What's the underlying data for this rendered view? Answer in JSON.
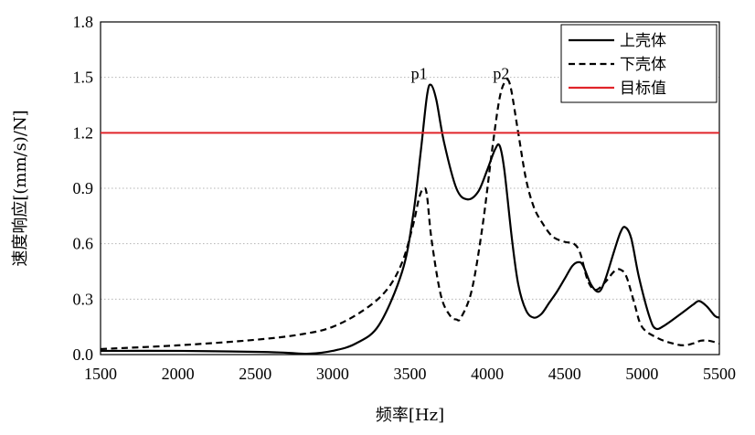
{
  "chart_data": {
    "type": "line",
    "title": "",
    "xlabel": "频率[Hz]",
    "ylabel": "速度响应[(mm/s)/N]",
    "xlim": [
      1500,
      5500
    ],
    "ylim": [
      0,
      1.8
    ],
    "x_ticks": [
      "1500",
      "2000",
      "2500",
      "3000",
      "3500",
      "4000",
      "4500",
      "5000",
      "5500"
    ],
    "y_ticks": [
      "0.0",
      "0.3",
      "0.6",
      "0.9",
      "1.2",
      "1.5",
      "1.8"
    ],
    "grid": true,
    "legend_position": "top-right",
    "series": [
      {
        "name": "上壳体",
        "style": "solid",
        "color": "#000000",
        "x": [
          1500,
          2000,
          2500,
          2700,
          2850,
          3000,
          3150,
          3300,
          3450,
          3520,
          3570,
          3610,
          3635,
          3670,
          3720,
          3800,
          3870,
          3940,
          4000,
          4050,
          4080,
          4110,
          4160,
          4200,
          4250,
          4300,
          4350,
          4400,
          4450,
          4500,
          4550,
          4590,
          4620,
          4670,
          4720,
          4760,
          4820,
          4860,
          4890,
          4930,
          4980,
          5050,
          5090,
          5150,
          5250,
          5330,
          5370,
          5420,
          5470,
          5500
        ],
        "values": [
          0.02,
          0.02,
          0.015,
          0.01,
          0.005,
          0.02,
          0.06,
          0.16,
          0.45,
          0.75,
          1.1,
          1.4,
          1.46,
          1.38,
          1.15,
          0.9,
          0.84,
          0.88,
          1.0,
          1.11,
          1.13,
          1.0,
          0.62,
          0.38,
          0.24,
          0.2,
          0.22,
          0.28,
          0.34,
          0.41,
          0.48,
          0.5,
          0.48,
          0.38,
          0.34,
          0.4,
          0.56,
          0.66,
          0.69,
          0.63,
          0.42,
          0.2,
          0.14,
          0.16,
          0.22,
          0.27,
          0.29,
          0.26,
          0.21,
          0.2
        ]
      },
      {
        "name": "下壳体",
        "style": "dashed",
        "color": "#000000",
        "x": [
          1500,
          2000,
          2500,
          2800,
          3000,
          3200,
          3350,
          3450,
          3520,
          3560,
          3590,
          3610,
          3640,
          3700,
          3760,
          3800,
          3830,
          3900,
          3970,
          4030,
          4080,
          4120,
          4150,
          4200,
          4250,
          4300,
          4350,
          4420,
          4500,
          4560,
          4600,
          4650,
          4700,
          4760,
          4820,
          4860,
          4900,
          4950,
          5000,
          5100,
          5200,
          5270,
          5330,
          5380,
          5430,
          5480,
          5500
        ],
        "values": [
          0.03,
          0.05,
          0.08,
          0.11,
          0.15,
          0.24,
          0.35,
          0.5,
          0.7,
          0.85,
          0.9,
          0.86,
          0.62,
          0.32,
          0.21,
          0.19,
          0.2,
          0.35,
          0.7,
          1.1,
          1.39,
          1.48,
          1.45,
          1.2,
          0.95,
          0.8,
          0.72,
          0.64,
          0.61,
          0.6,
          0.55,
          0.4,
          0.35,
          0.39,
          0.45,
          0.46,
          0.42,
          0.28,
          0.15,
          0.09,
          0.06,
          0.05,
          0.06,
          0.075,
          0.075,
          0.065,
          0.06
        ]
      },
      {
        "name": "目标值",
        "style": "solid",
        "color": "#e0242a",
        "x": [
          1500,
          5500
        ],
        "values": [
          1.2,
          1.2
        ]
      }
    ],
    "annotations": [
      {
        "text": "p1",
        "x": 3560,
        "y": 1.5
      },
      {
        "text": "p2",
        "x": 4090,
        "y": 1.5
      }
    ]
  }
}
